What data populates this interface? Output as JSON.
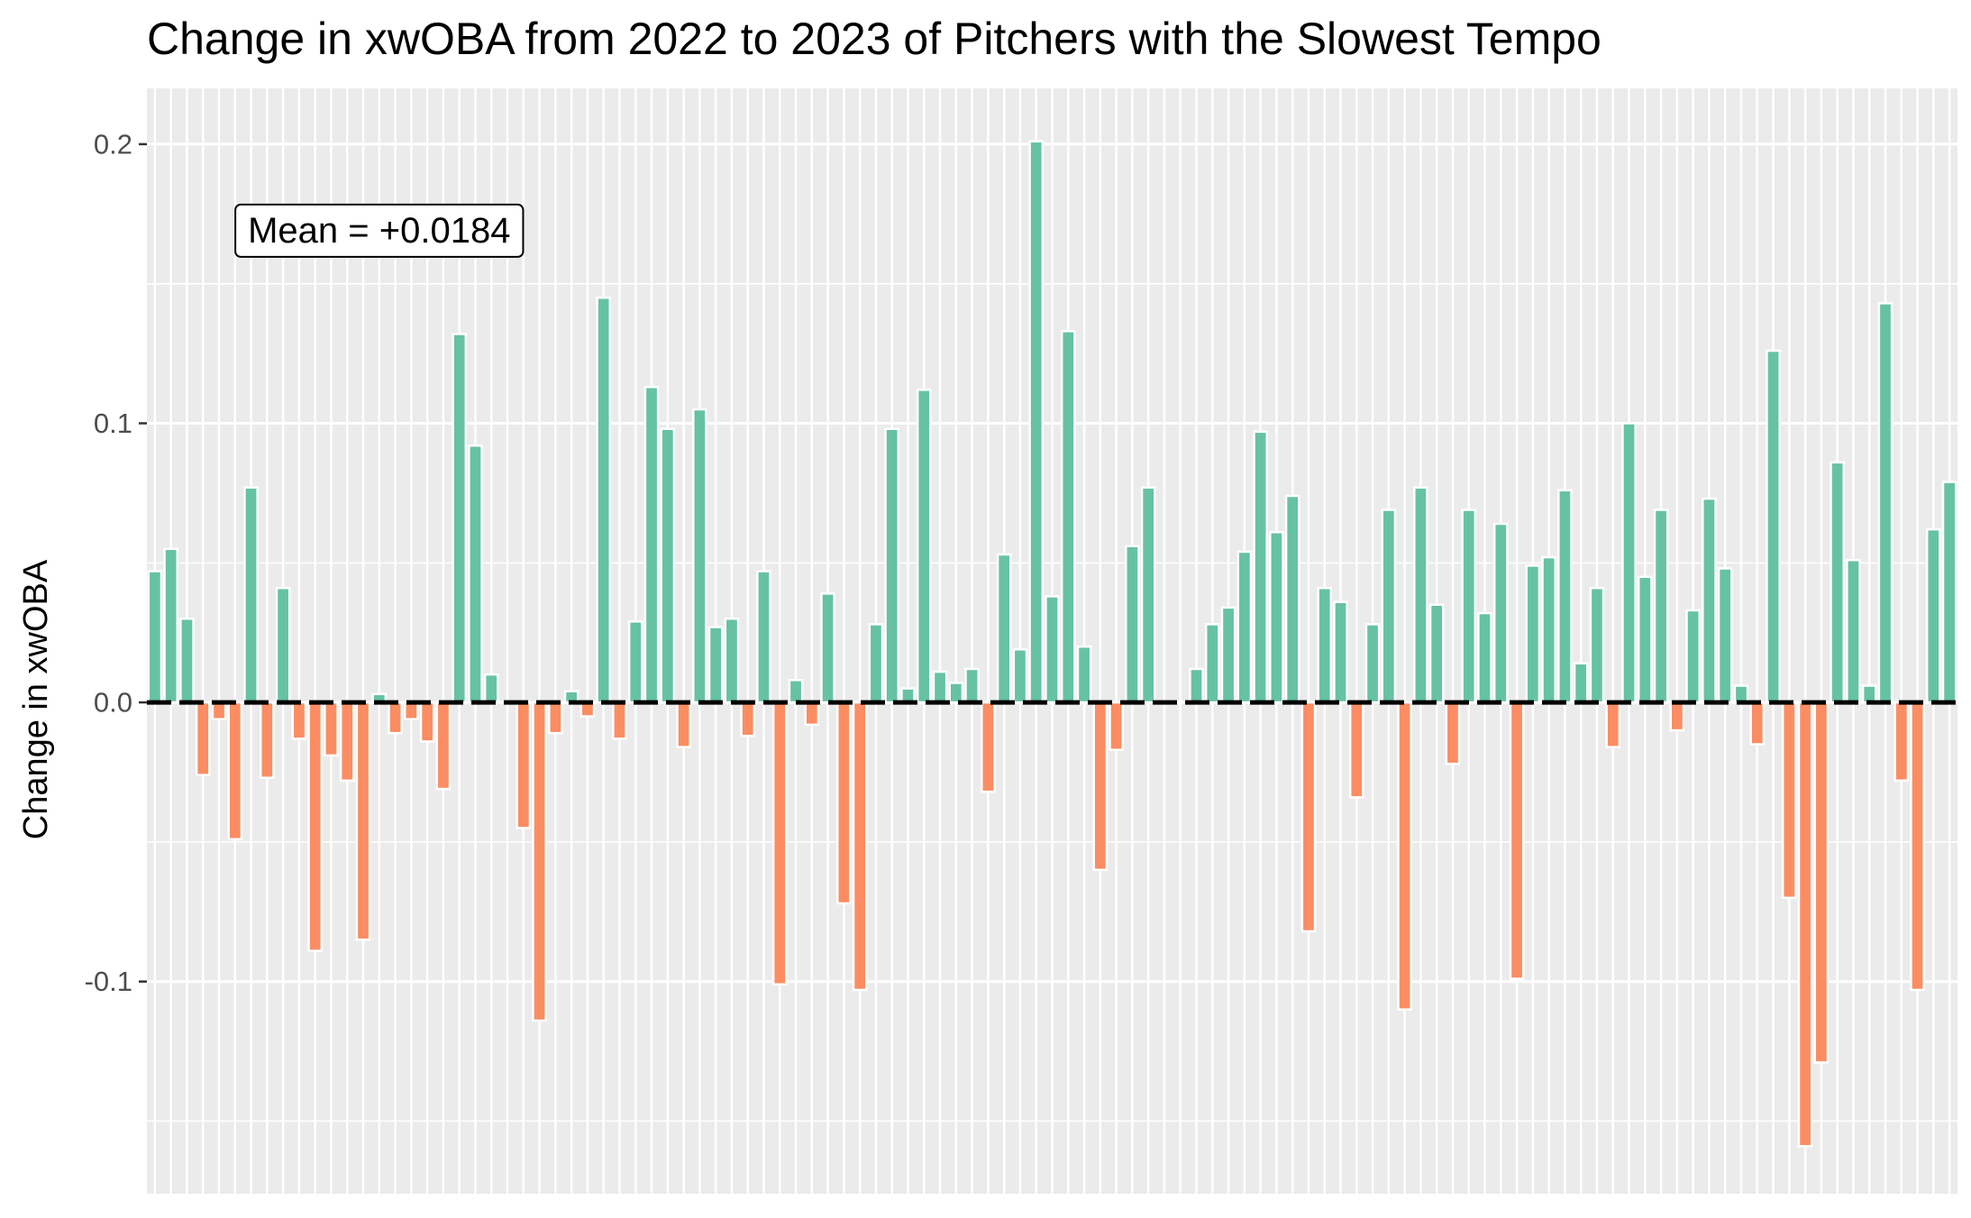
{
  "chart_data": {
    "type": "bar",
    "title": "Change in xwOBA from 2022 to 2023 of Pitchers with the Slowest Tempo",
    "xlabel": "",
    "ylabel": "Change in xwOBA",
    "ylim": [
      -0.176,
      0.22
    ],
    "yticks": [
      -0.1,
      0.0,
      0.1,
      0.2
    ],
    "ytick_labels": [
      "-0.1",
      "0.0",
      "0.1",
      "0.2"
    ],
    "grid": true,
    "legend": "none",
    "reference_line": {
      "y": 0,
      "style": "dashed",
      "color": "#000000"
    },
    "annotation": {
      "text": "Mean = +0.0184",
      "x_index": 14,
      "y": 0.169
    },
    "colors": {
      "positive": "#66c2a5",
      "negative": "#fc8d62",
      "panel": "#ebebeb",
      "grid": "#ffffff"
    },
    "values": [
      0.047,
      0.055,
      0.03,
      -0.026,
      -0.006,
      -0.049,
      0.077,
      -0.027,
      0.041,
      -0.013,
      -0.089,
      -0.019,
      -0.028,
      -0.085,
      0.003,
      -0.011,
      -0.006,
      -0.014,
      -0.031,
      0.132,
      0.092,
      0.01,
      0.0,
      -0.045,
      -0.114,
      -0.011,
      0.004,
      -0.005,
      0.145,
      -0.013,
      0.029,
      0.113,
      0.098,
      -0.016,
      0.105,
      0.027,
      0.03,
      -0.012,
      0.047,
      -0.101,
      0.008,
      -0.008,
      0.039,
      -0.072,
      -0.103,
      0.028,
      0.098,
      0.005,
      0.112,
      0.011,
      0.007,
      0.012,
      -0.032,
      0.053,
      0.019,
      0.201,
      0.038,
      0.133,
      0.02,
      -0.06,
      -0.017,
      0.056,
      0.077,
      0.0,
      0.0,
      0.012,
      0.028,
      0.034,
      0.054,
      0.097,
      0.061,
      0.074,
      -0.082,
      0.041,
      0.036,
      -0.034,
      0.028,
      0.069,
      -0.11,
      0.077,
      0.035,
      -0.022,
      0.069,
      0.032,
      0.064,
      -0.099,
      0.049,
      0.052,
      0.076,
      0.014,
      0.041,
      -0.016,
      0.1,
      0.045,
      0.069,
      -0.01,
      0.033,
      0.073,
      0.048,
      0.006,
      -0.015,
      0.126,
      -0.07,
      -0.159,
      -0.129,
      0.086,
      0.051,
      0.006,
      0.143,
      -0.028,
      -0.103,
      0.062,
      0.079
    ]
  }
}
